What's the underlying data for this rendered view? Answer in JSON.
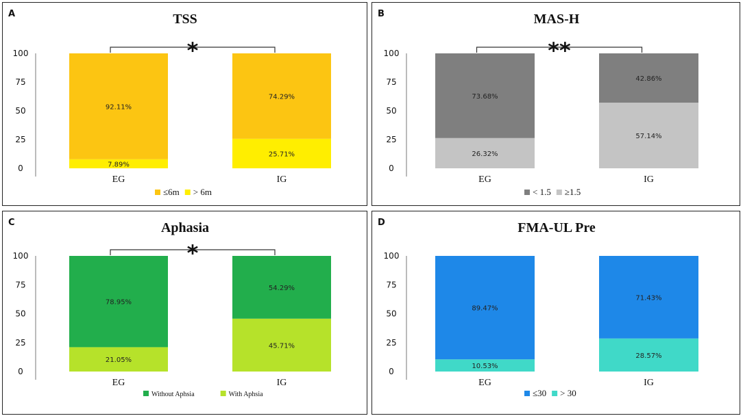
{
  "figure": {
    "chart_data": [
      {
        "type": "bar",
        "stacked": true,
        "panel_label": "A",
        "title": "TSS",
        "categories": [
          "EG",
          "IG"
        ],
        "yticks": [
          "0",
          "25",
          "50",
          "75",
          "100"
        ],
        "ylim": [
          0,
          100
        ],
        "significance": "*",
        "series": [
          {
            "name": "> 6m",
            "values": [
              7.89,
              25.71
            ],
            "labels": [
              "7.89%",
              "25.71%"
            ],
            "color": "#FFEE00"
          },
          {
            "name": "≤6m",
            "values": [
              92.11,
              74.29
            ],
            "labels": [
              "92.11%",
              "74.29%"
            ],
            "color": "#FCC512"
          }
        ],
        "legend": [
          {
            "name": "≤6m",
            "color": "#FCC512"
          },
          {
            "name": "> 6m",
            "color": "#FFEE00"
          }
        ],
        "legend_position": "bottom"
      },
      {
        "type": "bar",
        "stacked": true,
        "panel_label": "B",
        "title": "MAS-H",
        "categories": [
          "EG",
          "IG"
        ],
        "yticks": [
          "0",
          "25",
          "50",
          "75",
          "100"
        ],
        "ylim": [
          0,
          100
        ],
        "significance": "**",
        "series": [
          {
            "name": "≥1.5",
            "values": [
              26.32,
              57.14
            ],
            "labels": [
              "26.32%",
              "57.14%"
            ],
            "color": "#C4C4C4"
          },
          {
            "name": "< 1.5",
            "values": [
              73.68,
              42.86
            ],
            "labels": [
              "73.68%",
              "42.86%"
            ],
            "color": "#7F7F7F"
          }
        ],
        "legend": [
          {
            "name": "< 1.5",
            "color": "#7F7F7F"
          },
          {
            "name": "≥1.5",
            "color": "#C4C4C4"
          }
        ],
        "legend_position": "bottom"
      },
      {
        "type": "bar",
        "stacked": true,
        "panel_label": "C",
        "title": "Aphasia",
        "categories": [
          "EG",
          "IG"
        ],
        "yticks": [
          "0",
          "25",
          "50",
          "75",
          "100"
        ],
        "ylim": [
          0,
          100
        ],
        "significance": "*",
        "series": [
          {
            "name": "With Aphsia",
            "values": [
              21.05,
              45.71
            ],
            "labels": [
              "21.05%",
              "45.71%"
            ],
            "color": "#B6E22A"
          },
          {
            "name": "Without Aphsia",
            "values": [
              78.95,
              54.29
            ],
            "labels": [
              "78.95%",
              "54.29%"
            ],
            "color": "#22AE4C"
          }
        ],
        "legend": [
          {
            "name": "Without Aphsia",
            "color": "#22AE4C"
          },
          {
            "name": "With Aphsia",
            "color": "#B6E22A"
          }
        ],
        "legend_position": "bottom"
      },
      {
        "type": "bar",
        "stacked": true,
        "panel_label": "D",
        "title": "FMA-UL Pre",
        "categories": [
          "EG",
          "IG"
        ],
        "yticks": [
          "0",
          "25",
          "50",
          "75",
          "100"
        ],
        "ylim": [
          0,
          100
        ],
        "significance": "",
        "series": [
          {
            "name": "> 30",
            "values": [
              10.53,
              28.57
            ],
            "labels": [
              "10.53%",
              "28.57%"
            ],
            "color": "#40D9C8"
          },
          {
            "name": "≤30",
            "values": [
              89.47,
              71.43
            ],
            "labels": [
              "89.47%",
              "71.43%"
            ],
            "color": "#1E88E8"
          }
        ],
        "legend": [
          {
            "name": "≤30",
            "color": "#1E88E8"
          },
          {
            "name": "> 30",
            "color": "#40D9C8"
          }
        ],
        "legend_position": "bottom"
      }
    ]
  }
}
